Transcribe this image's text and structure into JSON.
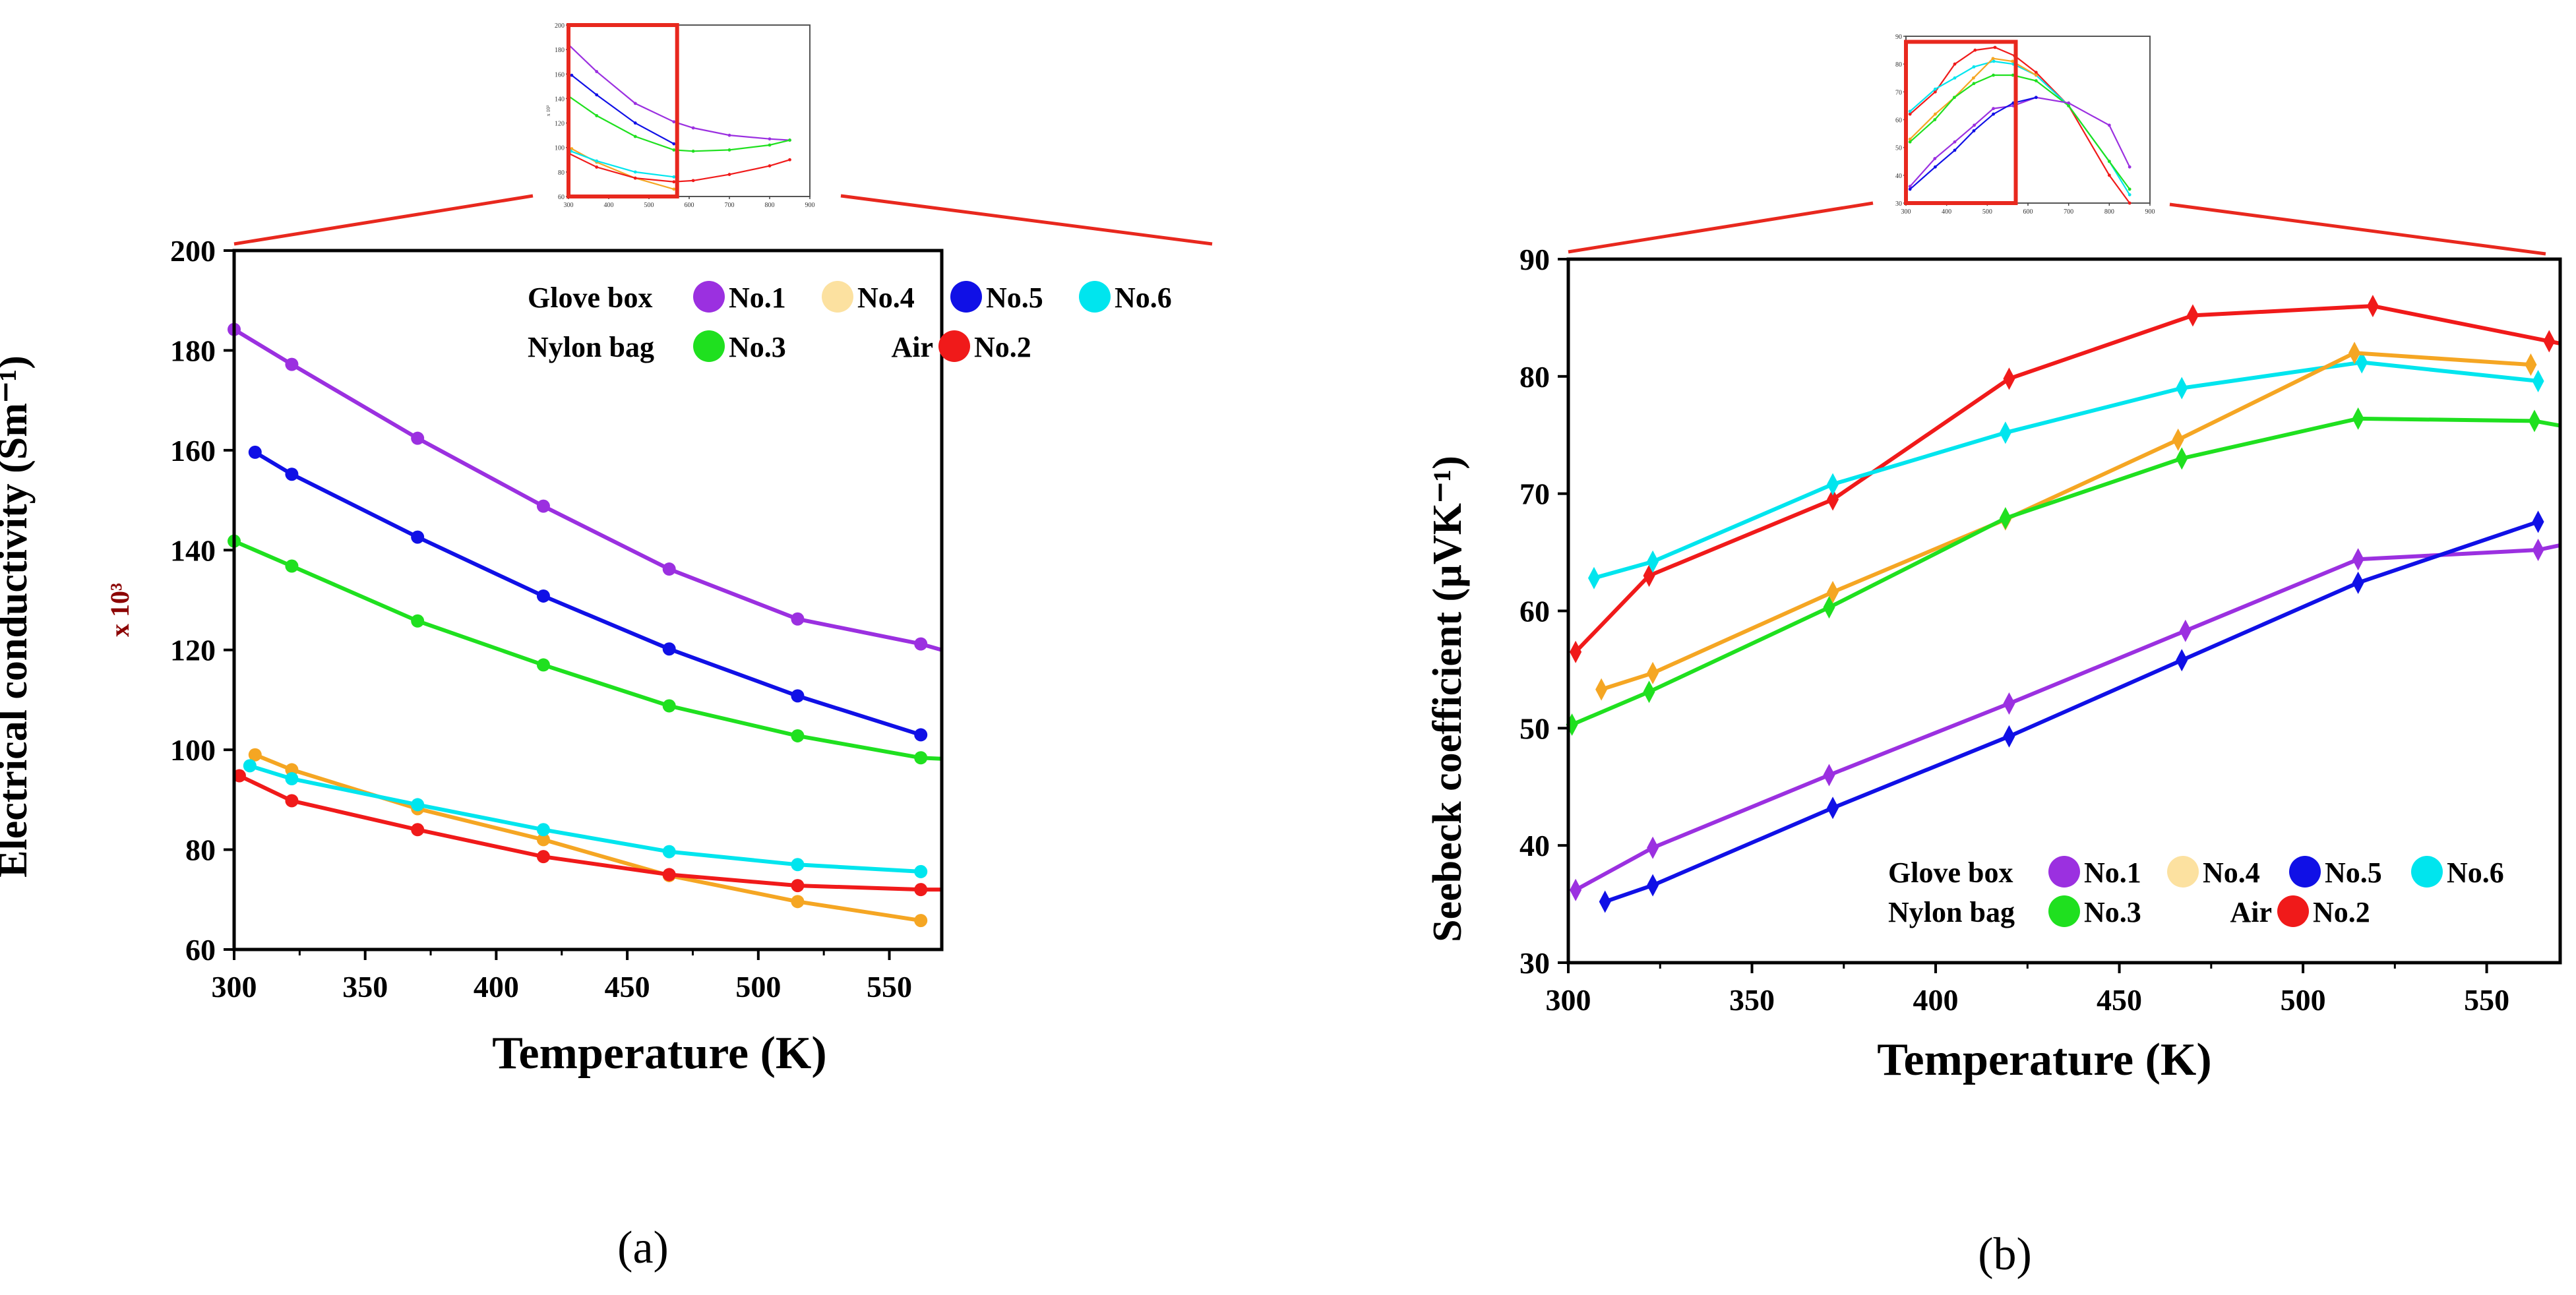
{
  "chart_data": [
    {
      "type": "line",
      "panel_label": "(a)",
      "xlabel": "Temperature (K)",
      "ylabel": "Electrical conductivity (Sm⁻¹)",
      "multiplier_label": "x 10³",
      "xlim": [
        300,
        570
      ],
      "ylim": [
        60,
        200
      ],
      "xticks": [
        300,
        350,
        400,
        450,
        500,
        550
      ],
      "yticks": [
        60,
        80,
        100,
        120,
        140,
        160,
        180,
        200
      ],
      "legend_groups": [
        {
          "group": "Glove box",
          "items": [
            "No.1",
            "No.4",
            "No.5",
            "No.6"
          ]
        },
        {
          "group": "Nylon bag",
          "items": [
            "No.3"
          ]
        },
        {
          "group": "Air",
          "items": [
            "No.2"
          ]
        }
      ],
      "series": [
        {
          "name": "No.1",
          "color": "#9B30E0",
          "x": [
            300,
            322,
            370,
            418,
            466,
            515,
            562,
            570
          ],
          "y": [
            184.2,
            177.2,
            162.4,
            148.8,
            136.2,
            126.2,
            121.2,
            120.0
          ]
        },
        {
          "name": "No.5",
          "color": "#1010E6",
          "x": [
            308,
            322,
            370,
            418,
            466,
            515,
            562
          ],
          "y": [
            159.6,
            155.2,
            142.6,
            130.8,
            120.2,
            110.8,
            103.0
          ]
        },
        {
          "name": "No.3",
          "color": "#1FE01F",
          "x": [
            300,
            322,
            370,
            418,
            466,
            515,
            562,
            570
          ],
          "y": [
            141.8,
            136.8,
            125.8,
            117.0,
            108.8,
            102.8,
            98.4,
            98.2
          ]
        },
        {
          "name": "No.4",
          "color": "#F5A623",
          "x": [
            308,
            322,
            370,
            418,
            466,
            515,
            562
          ],
          "y": [
            99.0,
            96.0,
            88.2,
            82.0,
            74.8,
            69.6,
            65.8
          ]
        },
        {
          "name": "No.6",
          "color": "#00E5EE",
          "x": [
            306,
            322,
            370,
            418,
            466,
            515,
            562
          ],
          "y": [
            96.8,
            94.2,
            89.0,
            84.0,
            79.6,
            77.0,
            75.6
          ]
        },
        {
          "name": "No.2",
          "color": "#F01A1A",
          "x": [
            302,
            322,
            370,
            418,
            466,
            515,
            562,
            570
          ],
          "y": [
            94.8,
            89.8,
            84.0,
            78.6,
            75.0,
            72.8,
            72.0,
            72.0
          ]
        }
      ],
      "inset": {
        "xticks": [
          300,
          400,
          500,
          600,
          700,
          800,
          900
        ],
        "yticks": [
          60,
          80,
          100,
          120,
          140,
          160,
          180,
          200
        ],
        "ylabel": "x 10³",
        "xlim": [
          300,
          900
        ],
        "ylim": [
          60,
          200
        ],
        "zoom_box": {
          "x": [
            300,
            570
          ],
          "y": [
            60,
            200
          ]
        },
        "series": [
          {
            "name": "No.1",
            "color": "#9B30E0",
            "x": [
              300,
              370,
              466,
              562,
              610,
              700,
              800,
              850
            ],
            "y": [
              184,
              162,
              136,
              121,
              116,
              110,
              107,
              106
            ]
          },
          {
            "name": "No.5",
            "color": "#1010E6",
            "x": [
              308,
              370,
              466,
              562
            ],
            "y": [
              159,
              143,
              120,
              103
            ]
          },
          {
            "name": "No.3",
            "color": "#1FE01F",
            "x": [
              300,
              370,
              466,
              562,
              610,
              700,
              800,
              850
            ],
            "y": [
              142,
              126,
              109,
              98,
              97,
              98,
              102,
              106
            ]
          },
          {
            "name": "No.4",
            "color": "#F5A623",
            "x": [
              308,
              370,
              466,
              562
            ],
            "y": [
              99,
              88,
              75,
              66
            ]
          },
          {
            "name": "No.6",
            "color": "#00E5EE",
            "x": [
              306,
              370,
              466,
              562
            ],
            "y": [
              97,
              89,
              80,
              76
            ]
          },
          {
            "name": "No.2",
            "color": "#F01A1A",
            "x": [
              302,
              370,
              466,
              562,
              610,
              700,
              800,
              850
            ],
            "y": [
              95,
              84,
              75,
              72,
              73,
              78,
              85,
              90
            ]
          }
        ]
      }
    },
    {
      "type": "line",
      "panel_label": "(b)",
      "xlabel": "Temperature (K)",
      "ylabel": "Seebeck coefficient (µVK⁻¹)",
      "xlim": [
        300,
        570
      ],
      "ylim": [
        30,
        90
      ],
      "xticks": [
        300,
        350,
        400,
        450,
        500,
        550
      ],
      "yticks": [
        30,
        40,
        50,
        60,
        70,
        80,
        90
      ],
      "legend_groups": [
        {
          "group": "Glove box",
          "items": [
            "No.1",
            "No.4",
            "No.5",
            "No.6"
          ]
        },
        {
          "group": "Nylon bag",
          "items": [
            "No.3"
          ]
        },
        {
          "group": "Air",
          "items": [
            "No.2"
          ]
        }
      ],
      "series": [
        {
          "name": "No.2",
          "color": "#F01A1A",
          "x": [
            302,
            322,
            372,
            420,
            470,
            519,
            567,
            570
          ],
          "y": [
            56.5,
            63.0,
            69.5,
            79.8,
            85.2,
            86.0,
            83.0,
            82.8
          ]
        },
        {
          "name": "No.6",
          "color": "#00E5EE",
          "x": [
            307,
            323,
            372,
            419,
            467,
            516,
            564
          ],
          "y": [
            62.8,
            64.2,
            70.8,
            75.2,
            79.0,
            81.2,
            79.6
          ]
        },
        {
          "name": "No.4",
          "color": "#F5A623",
          "x": [
            309,
            323,
            372,
            419,
            466,
            514,
            562
          ],
          "y": [
            53.3,
            54.7,
            61.6,
            67.8,
            74.6,
            82.0,
            81.0
          ]
        },
        {
          "name": "No.3",
          "color": "#1FE01F",
          "x": [
            301,
            322,
            371,
            419,
            467,
            515,
            563,
            570
          ],
          "y": [
            50.3,
            53.1,
            60.3,
            67.9,
            73.0,
            76.4,
            76.2,
            75.8
          ]
        },
        {
          "name": "No.1",
          "color": "#9B30E0",
          "x": [
            302,
            323,
            371,
            420,
            468,
            515,
            564,
            570
          ],
          "y": [
            36.2,
            39.8,
            46.0,
            52.1,
            58.3,
            64.4,
            65.2,
            65.6
          ]
        },
        {
          "name": "No.5",
          "color": "#1010E6",
          "x": [
            310,
            323,
            372,
            420,
            467,
            515,
            564
          ],
          "y": [
            35.2,
            36.6,
            43.2,
            49.3,
            55.8,
            62.4,
            67.6
          ]
        }
      ],
      "inset": {
        "yticks": [
          30,
          40,
          50,
          60,
          70,
          80,
          90
        ],
        "xticks": [
          300,
          400,
          500,
          600,
          700,
          800,
          900
        ],
        "xlim": [
          300,
          900
        ],
        "ylim": [
          30,
          90
        ],
        "zoom_box": {
          "x": [
            300,
            570
          ],
          "y": [
            30,
            88
          ]
        },
        "series": [
          {
            "name": "No.2",
            "color": "#F01A1A",
            "x": [
              310,
              372,
              420,
              470,
              519,
              567,
              620,
              700,
              800,
              850
            ],
            "y": [
              62,
              70,
              80,
              85,
              86,
              83,
              77,
              65,
              40,
              30
            ]
          },
          {
            "name": "No.6",
            "color": "#00E5EE",
            "x": [
              310,
              372,
              420,
              467,
              516,
              564,
              620,
              700,
              800,
              850
            ],
            "y": [
              63,
              71,
              75,
              79,
              81,
              80,
              76,
              65,
              45,
              33
            ]
          },
          {
            "name": "No.4",
            "color": "#F5A623",
            "x": [
              310,
              372,
              419,
              466,
              514,
              562,
              620
            ],
            "y": [
              53,
              62,
              68,
              75,
              82,
              81,
              76
            ]
          },
          {
            "name": "No.3",
            "color": "#1FE01F",
            "x": [
              310,
              371,
              419,
              467,
              515,
              563,
              620,
              700,
              800,
              850
            ],
            "y": [
              52,
              60,
              68,
              73,
              76,
              76,
              74,
              65,
              45,
              35
            ]
          },
          {
            "name": "No.1",
            "color": "#9B30E0",
            "x": [
              310,
              371,
              420,
              468,
              515,
              564,
              620,
              700,
              800,
              850
            ],
            "y": [
              36,
              46,
              52,
              58,
              64,
              65,
              68,
              66,
              58,
              43
            ]
          },
          {
            "name": "No.5",
            "color": "#1010E6",
            "x": [
              310,
              372,
              420,
              467,
              515,
              564,
              620
            ],
            "y": [
              35,
              43,
              49,
              56,
              62,
              66,
              68
            ]
          }
        ]
      }
    }
  ]
}
